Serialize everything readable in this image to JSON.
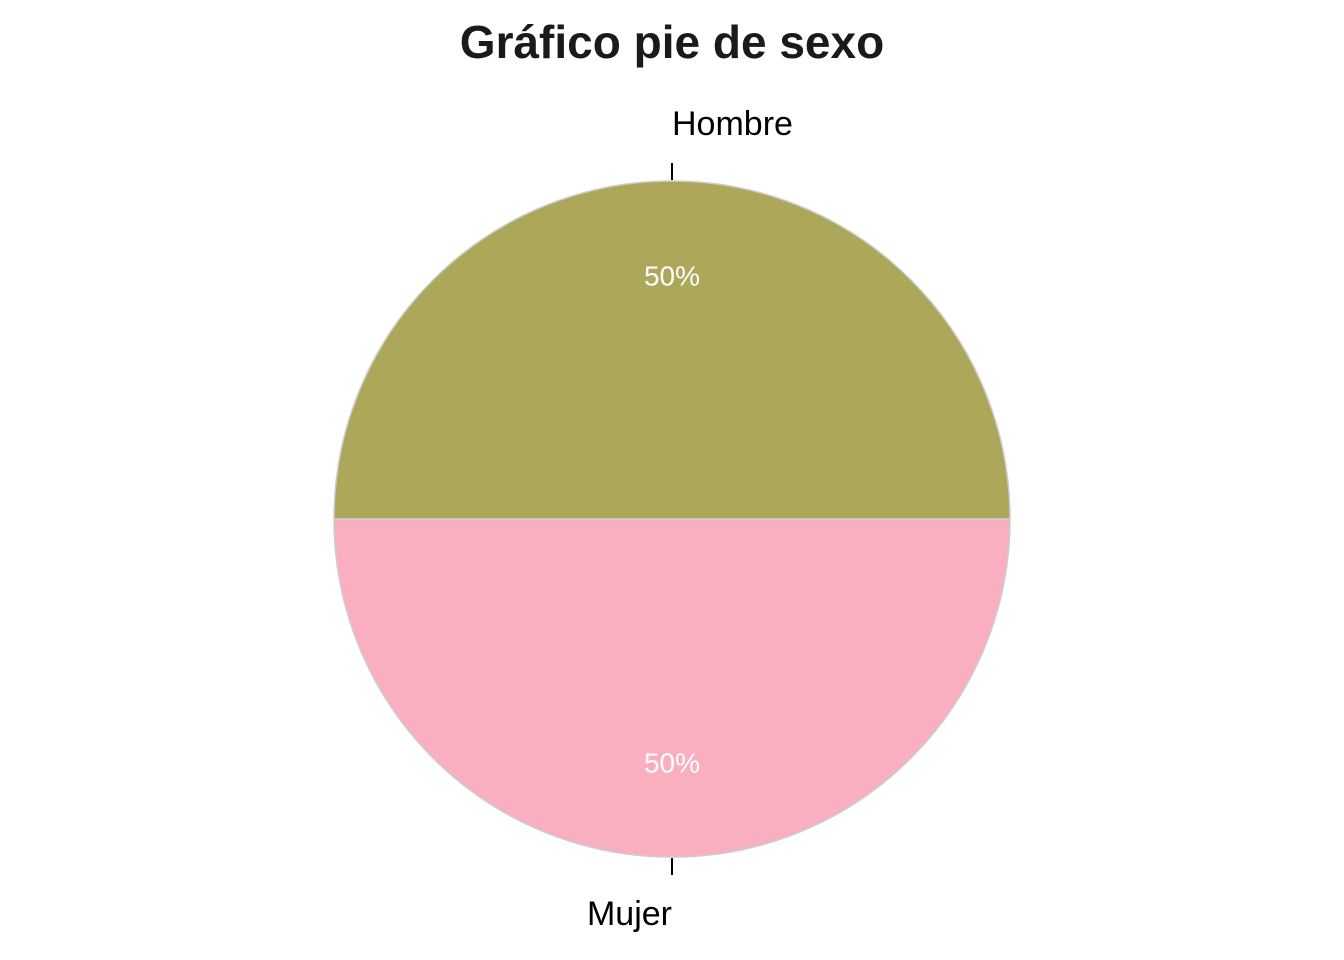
{
  "chart_data": {
    "type": "pie",
    "title": "Gráfico pie de sexo",
    "categories": [
      "Hombre",
      "Mujer"
    ],
    "values": [
      50,
      50
    ],
    "value_labels": [
      "50%",
      "50%"
    ],
    "colors": [
      "#ADA75A",
      "#FAAFC0"
    ],
    "edge_color": "#CCCCCC",
    "legend": "none"
  }
}
